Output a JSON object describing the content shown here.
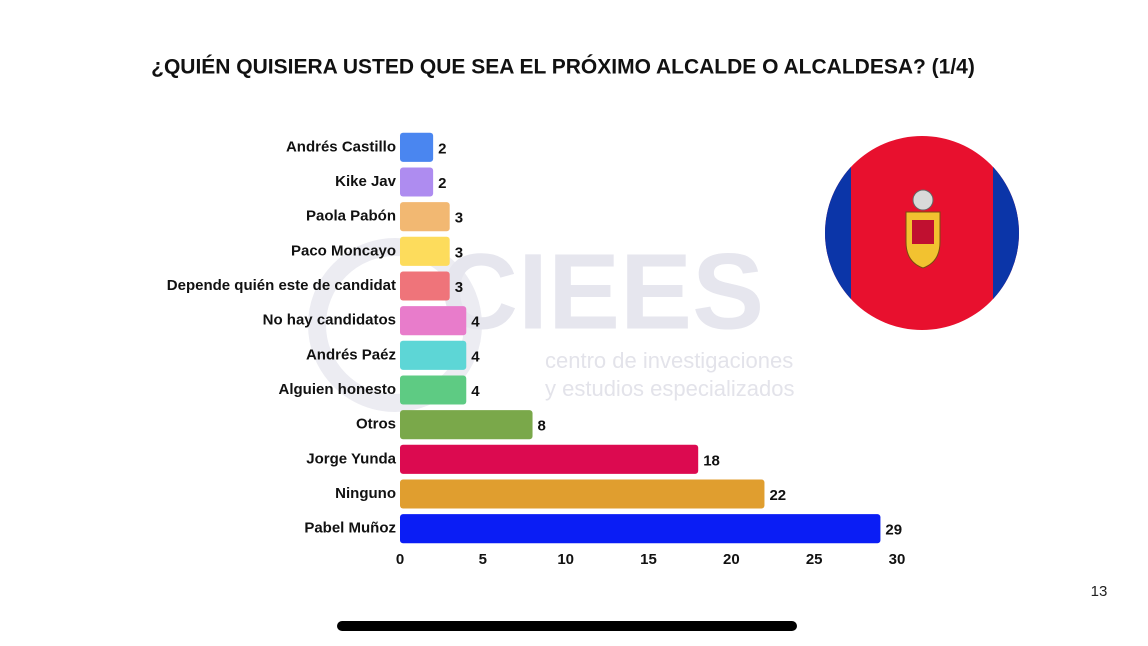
{
  "chart_data": {
    "type": "bar",
    "orientation": "horizontal",
    "title": "¿QUIÉN QUISIERA USTED QUE SEA EL PRÓXIMO ALCALDE O ALCALDESA? (1/4)",
    "categories": [
      "Andrés Castillo",
      "Kike Jav",
      "Paola Pabón",
      "Paco Moncayo",
      "Depende quién este de candidat",
      "No hay candidatos",
      "Andrés Paéz",
      "Alguien honesto",
      "Otros",
      "Jorge Yunda",
      "Ninguno",
      "Pabel Muñoz"
    ],
    "values": [
      2,
      2,
      3,
      3,
      3,
      4,
      4,
      4,
      8,
      18,
      22,
      29
    ],
    "colors": [
      "#4a86f0",
      "#ae8cf0",
      "#f2b872",
      "#fddc5c",
      "#ef747a",
      "#e87ccb",
      "#5dd6d6",
      "#5ecb83",
      "#7aa84a",
      "#dc0a50",
      "#e09e2f",
      "#0a1df5"
    ],
    "xlim": [
      0,
      30
    ],
    "xticks": [
      0,
      5,
      10,
      15,
      20,
      25,
      30
    ],
    "grid": false
  },
  "watermark": {
    "brand": "CIEES",
    "line1": "centro de investigaciones",
    "line2": "y estudios especializados"
  },
  "page_number": 13
}
